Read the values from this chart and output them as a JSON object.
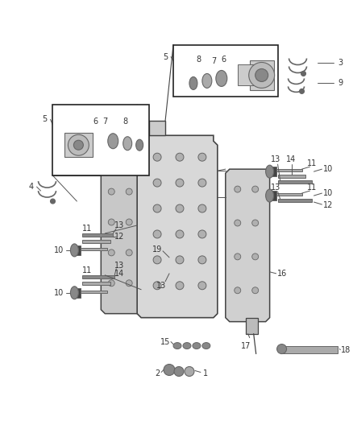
{
  "background_color": "#ffffff",
  "fig_width": 4.38,
  "fig_height": 5.33,
  "dpi": 100,
  "line_color": "#555555",
  "dark_color": "#333333",
  "part_color": "#666666",
  "label_fontsize": 7.0,
  "label_color": "#333333",
  "part_fill": "#aaaaaa",
  "part_fill_dark": "#888888",
  "box_edge": "#222222"
}
